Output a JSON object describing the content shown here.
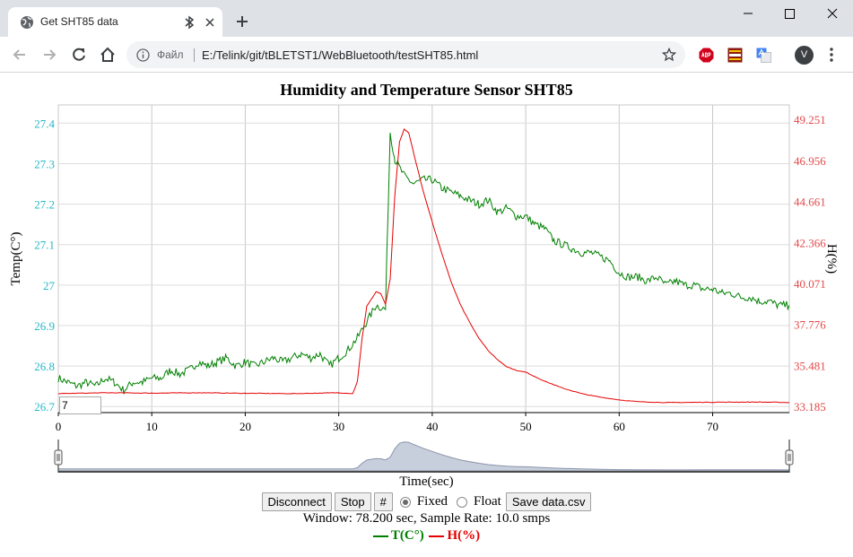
{
  "browser": {
    "tab_title": "Get SHT85 data",
    "chip": "Файл",
    "url": "E:/Telink/git/tBLETST1/WebBluetooth/testSHT85.html",
    "profile_initial": "V",
    "icons": [
      "globe-icon",
      "bluetooth-icon",
      "close-icon",
      "plus-icon",
      "minimize-icon",
      "maximize-icon",
      "close-window-icon",
      "back-icon",
      "forward-icon",
      "reload-icon",
      "home-icon",
      "info-icon",
      "star-icon",
      "adblock-icon",
      "extension-icon",
      "translate-icon",
      "more-menu-icon"
    ]
  },
  "page": {
    "title": "Humidity and Temperature Sensor SHT85",
    "window_input_value": "7",
    "buttons": {
      "disconnect": "Disconnect",
      "stop": "Stop",
      "hash": "#",
      "save": "Save data.csv"
    },
    "radio": {
      "fixed": "Fixed",
      "float": "Float",
      "selected": "fixed"
    },
    "status": "Window: 78.200 sec, Sample Rate: 10.0 smps",
    "legend": {
      "temp": "T(C°)",
      "hum": "H(%)"
    }
  },
  "chart_data": {
    "type": "line",
    "title": "Humidity and Temperature Sensor SHT85",
    "xlabel": "Time(sec)",
    "ylabel": "Temp(C°)",
    "y2label": "H(%)",
    "xlim": [
      0,
      78.2
    ],
    "xticks": [
      0,
      10,
      20,
      30,
      40,
      50,
      60,
      70
    ],
    "ylim": [
      26.685,
      27.445
    ],
    "yticks": [
      "27.4",
      "27.3",
      "27.2",
      "27.1",
      "27",
      "26.9",
      "26.8",
      "26.7"
    ],
    "y2lim": [
      32.839,
      50.066
    ],
    "y2ticks": [
      "49.251",
      "46.956",
      "44.661",
      "42.366",
      "40.071",
      "37.776",
      "35.481",
      "33.185"
    ],
    "grid": true,
    "legend_placement": "bottom",
    "series": [
      {
        "name": "T(C°)",
        "axis": "left",
        "color": "#008000",
        "x": [
          0,
          1,
          2,
          3,
          4,
          5,
          6,
          7,
          8,
          9,
          10,
          11,
          12,
          13,
          14,
          15,
          16,
          17,
          18,
          19,
          20,
          21,
          22,
          23,
          24,
          25,
          26,
          27,
          28,
          29,
          30,
          31,
          32,
          33,
          34,
          35,
          35.5,
          36,
          37,
          38,
          39,
          40,
          41,
          42,
          43,
          44,
          45,
          46,
          47,
          48,
          49,
          50,
          51,
          52,
          53,
          54,
          55,
          56,
          57,
          58,
          59,
          60,
          61,
          62,
          63,
          64,
          65,
          66,
          67,
          68,
          69,
          70,
          71,
          72,
          73,
          74,
          75,
          76,
          77,
          78.2
        ],
        "values": [
          26.77,
          26.76,
          26.75,
          26.76,
          26.75,
          26.77,
          26.76,
          26.74,
          26.76,
          26.76,
          26.77,
          26.77,
          26.79,
          26.78,
          26.79,
          26.81,
          26.8,
          26.81,
          26.82,
          26.8,
          26.81,
          26.8,
          26.81,
          26.82,
          26.81,
          26.82,
          26.83,
          26.82,
          26.83,
          26.8,
          26.82,
          26.84,
          26.87,
          26.91,
          26.95,
          26.94,
          27.38,
          27.31,
          27.27,
          27.25,
          27.26,
          27.26,
          27.24,
          27.23,
          27.22,
          27.21,
          27.2,
          27.21,
          27.18,
          27.19,
          27.17,
          27.17,
          27.15,
          27.14,
          27.11,
          27.1,
          27.09,
          27.08,
          27.08,
          27.07,
          27.06,
          27.03,
          27.02,
          27.02,
          27.01,
          27.02,
          27.0,
          27.01,
          27.0,
          27.0,
          26.99,
          26.99,
          26.98,
          26.98,
          26.97,
          26.97,
          26.96,
          26.96,
          26.95,
          26.95
        ]
      },
      {
        "name": "H(%)",
        "axis": "right",
        "color": "#e60000",
        "x": [
          0,
          5,
          10,
          15,
          20,
          25,
          30,
          31.5,
          32,
          32.5,
          33,
          34,
          34.5,
          35,
          35.5,
          36,
          36.5,
          37,
          37.5,
          38,
          39,
          40,
          41,
          42,
          43,
          44,
          45,
          46,
          47,
          48,
          49,
          50,
          52,
          54,
          56,
          58,
          60,
          62,
          65,
          70,
          75,
          78.2
        ],
        "values": [
          33.9,
          33.95,
          33.93,
          33.95,
          33.92,
          33.9,
          33.95,
          33.9,
          34.6,
          37.0,
          38.8,
          39.6,
          39.5,
          38.9,
          40.3,
          45.0,
          48.0,
          48.7,
          48.5,
          47.4,
          45.3,
          43.5,
          41.8,
          40.2,
          38.9,
          37.9,
          37.0,
          36.3,
          35.8,
          35.4,
          35.2,
          35.1,
          34.6,
          34.2,
          33.9,
          33.7,
          33.55,
          33.45,
          33.4,
          33.42,
          33.43,
          33.4
        ]
      }
    ]
  }
}
